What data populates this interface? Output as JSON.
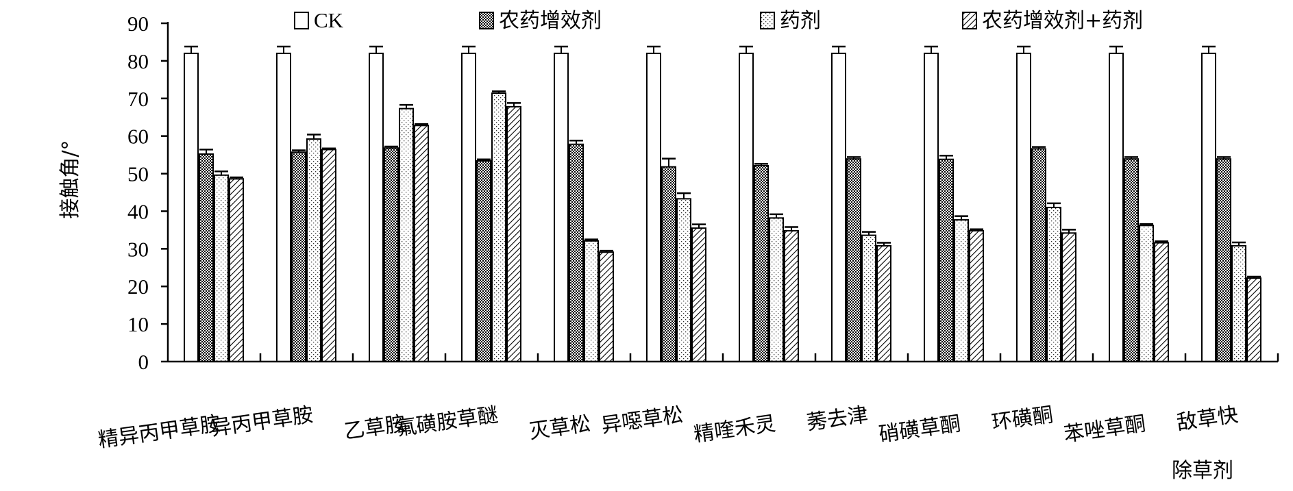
{
  "chart_data": {
    "type": "bar",
    "xlabel": "除草剂",
    "ylabel": "接触角/°",
    "ylim": [
      0,
      90
    ],
    "yticks": [
      0,
      10,
      20,
      30,
      40,
      50,
      60,
      70,
      80,
      90
    ],
    "error_bars": true,
    "grid": false,
    "legend_position": "top",
    "categories": [
      "精异丙甲草胺",
      "异丙甲草胺",
      "乙草胺",
      "氟磺胺草醚",
      "灭草松",
      "异噁草松",
      "精喹禾灵",
      "莠去津",
      "硝磺草酮",
      "环磺酮",
      "苯唑草酮",
      "敌草快"
    ],
    "series": [
      {
        "name": "CK",
        "pattern": "white",
        "values": [
          82,
          82,
          82,
          82,
          82,
          82,
          82,
          82,
          82,
          82,
          82,
          82
        ],
        "errors": [
          1.8,
          1.8,
          1.8,
          1.8,
          1.8,
          1.8,
          1.8,
          1.8,
          1.8,
          1.8,
          1.8,
          1.8
        ]
      },
      {
        "name": "农药增效剂",
        "pattern": "dense-dots",
        "values": [
          55.2,
          55.7,
          56.8,
          53.4,
          57.8,
          51.8,
          52.1,
          53.9,
          53.8,
          56.6,
          53.9,
          53.9
        ],
        "errors": [
          1.2,
          0.5,
          0.4,
          0.4,
          1.0,
          2.2,
          0.5,
          0.5,
          1.0,
          0.5,
          0.5,
          0.5
        ]
      },
      {
        "name": "药剂",
        "pattern": "sparse-dots",
        "values": [
          49.6,
          59.2,
          67.3,
          71.4,
          32.1,
          43.3,
          38.2,
          33.6,
          37.7,
          41.0,
          36.2,
          30.8
        ],
        "errors": [
          1.0,
          1.2,
          1.0,
          0.5,
          0.4,
          1.5,
          1.0,
          0.9,
          1.0,
          1.1,
          0.4,
          0.9
        ]
      },
      {
        "name": "农药增效剂+药剂",
        "pattern": "hatch",
        "values": [
          48.6,
          56.4,
          62.8,
          67.8,
          29.1,
          35.5,
          34.8,
          30.8,
          34.8,
          34.2,
          31.6,
          22.2
        ],
        "errors": [
          0.4,
          0.3,
          0.4,
          1.0,
          0.4,
          1.0,
          1.0,
          0.8,
          0.4,
          0.9,
          0.4,
          0.4
        ]
      }
    ]
  }
}
